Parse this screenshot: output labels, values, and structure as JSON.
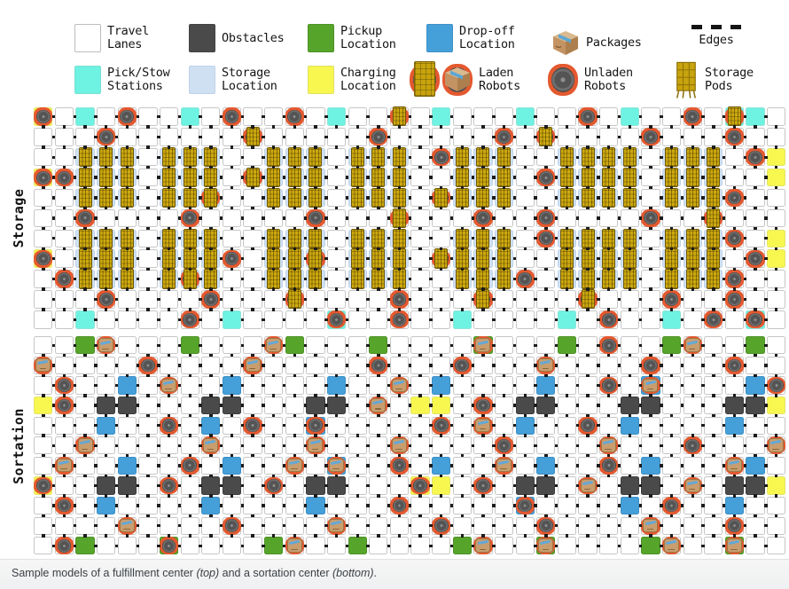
{
  "legend": {
    "items": [
      {
        "key": "travel-lanes",
        "label": "Travel\nLanes"
      },
      {
        "key": "obstacles",
        "label": "Obstacles"
      },
      {
        "key": "pickup-location",
        "label": "Pickup\nLocation"
      },
      {
        "key": "dropoff-location",
        "label": "Drop-off\nLocation"
      },
      {
        "key": "packages",
        "label": "Packages"
      },
      {
        "key": "edges",
        "label": "Edges"
      },
      {
        "key": "pick-stow-stations",
        "label": "Pick/Stow\nStations"
      },
      {
        "key": "storage-location",
        "label": "Storage\nLocation"
      },
      {
        "key": "charging-location",
        "label": "Charging\nLocation"
      },
      {
        "key": "laden-robots",
        "label": "Laden\nRobots"
      },
      {
        "key": "unladen-robots",
        "label": "Unladen\nRobots"
      },
      {
        "key": "storage-pods",
        "label": "Storage\nPods"
      }
    ]
  },
  "sections": [
    {
      "label": "Storage",
      "rows": [
        "Y.c.u..c.u..u.c..p.c...c..u.c..u.kc.",
        "...u......p.....u.....u.p....u...u..",
        "..SSS.SSS..SSS.SSS.uSSS..SSSS.SSS.uy",
        "YuSSS.SSS.pSSS.SSS..SSS.uSSSS.SSS..y",
        "..SSS.SSR..SSS.SSS.pSSS..SSSS.SSSu..",
        "..u....u.....u...p...u..u....u..p...",
        "..SSS.SSS..SSS.SSS..SSS.uSSSS.SSSu.y",
        "Y.SSS.SSSu.SSR.SSS.pSSS..SSSS.SSS.uy",
        ".uSSS.SRS..SSS.SSS..SSSu.SSSS.SSSu..",
        "...u....u...p....u...p....p...u..u..",
        "..c....u.c....q..u..c....c.u..c.u.q."
      ]
    },
    {
      "label": "Sortation",
      "rows": [
        "..gx...g...xg...g....H...g.u..gx..g.",
        "x....u....x.....u...u...x....u...u..",
        ".u..b.x..b....b..x.b....b..u.E....bu",
        "yu.oo...oo...oo.x.yy.u.oo...oo...ooy",
        "...b..u.b.u..D.....u.x.b..u.b....b..",
        "..x.....x....x...x....u....x...u...x",
        ".x..b..u.b..x.E..u.b..x.b..u.b...xb.",
        "Y..oo.u.oo.u.oo...Ky.u.oo.x.oo.x.ooy",
        ".u.b....b....b...u.....D....b.u..b..",
        "....x....u....x....u....u....x...u..",
        ".ug...G....gx..g....gx..H....gx..H.."
      ]
    }
  ],
  "cell_codes": {
    ".": {
      "base": "travel",
      "ent": []
    },
    "c": {
      "base": "pickstow",
      "ent": []
    },
    "y": {
      "base": "charging",
      "ent": []
    },
    "g": {
      "base": "pickup",
      "ent": []
    },
    "b": {
      "base": "dropoff",
      "ent": []
    },
    "o": {
      "base": "obstacle",
      "ent": []
    },
    "s": {
      "base": "storage",
      "ent": []
    },
    "S": {
      "base": "storage",
      "ent": [
        "pod"
      ]
    },
    "R": {
      "base": "storage",
      "ent": [
        "robot",
        "pod"
      ]
    },
    "U": {
      "base": "storage",
      "ent": [
        "robot"
      ]
    },
    "u": {
      "base": "travel",
      "ent": [
        "robot"
      ]
    },
    "p": {
      "base": "travel",
      "ent": [
        "robot",
        "pod"
      ]
    },
    "x": {
      "base": "travel",
      "ent": [
        "robot",
        "box"
      ]
    },
    "q": {
      "base": "pickstow",
      "ent": [
        "robot"
      ]
    },
    "k": {
      "base": "pickstow",
      "ent": [
        "robot",
        "pod"
      ]
    },
    "Y": {
      "base": "charging",
      "ent": [
        "robot"
      ]
    },
    "K": {
      "base": "charging",
      "ent": [
        "robot"
      ]
    },
    "G": {
      "base": "pickup",
      "ent": [
        "robot"
      ]
    },
    "H": {
      "base": "pickup",
      "ent": [
        "robot",
        "box"
      ]
    },
    "D": {
      "base": "dropoff",
      "ent": [
        "robot"
      ]
    },
    "E": {
      "base": "dropoff",
      "ent": [
        "robot",
        "box"
      ]
    }
  },
  "caption": {
    "p1": "Sample models of a fulfillment center ",
    "i1": "(top)",
    "p2": " and a sortation center ",
    "i2": "(bottom)",
    "p3": "."
  },
  "colors": {
    "travel_lane": "#ffffff",
    "obstacle": "#4a4a4a",
    "pickup": "#57a42b",
    "dropoff": "#459fd9",
    "pick_stow": "#6ef2e2",
    "storage_location": "#cfe0f2",
    "charging": "#f7f74f",
    "robot_ring": "#e4592f",
    "robot_disc": "#545454",
    "pod_gold": "#c7a30d",
    "package_tan": "#c99e6f",
    "tape_blue": "#63a8d8",
    "edge_dot": "#1c1c1c"
  }
}
